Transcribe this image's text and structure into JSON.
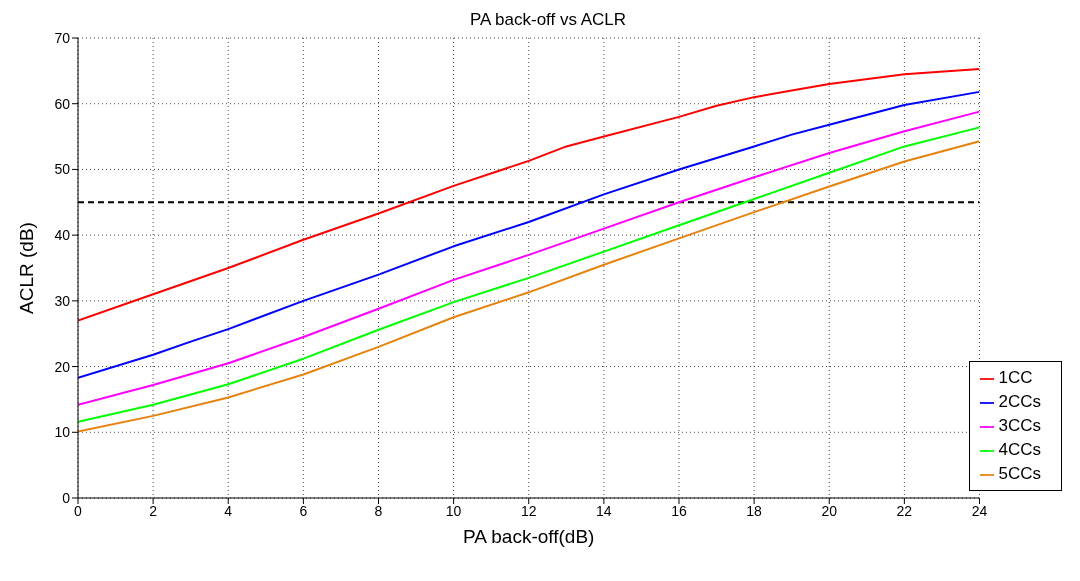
{
  "chart_data": {
    "type": "line",
    "title": "PA back-off vs ACLR",
    "xlabel": "PA back-off(dB)",
    "ylabel": "ACLR (dB)",
    "xlim": [
      0,
      24
    ],
    "xticks": [
      0,
      2,
      4,
      6,
      8,
      10,
      12,
      14,
      16,
      18,
      20,
      22,
      24
    ],
    "ylim": [
      0,
      70
    ],
    "yticks": [
      0,
      10,
      20,
      30,
      40,
      50,
      60,
      70
    ],
    "grid": true,
    "legend": "bottom right",
    "marker": "none",
    "line_style": "solid",
    "ref_lines": [
      {
        "axis": "y",
        "value": 45,
        "color": "#000000",
        "line_style": "dashed"
      }
    ],
    "series": [
      {
        "name": "1CC",
        "color": "#ff0000",
        "x": [
          0,
          2,
          4,
          6,
          8,
          10,
          12,
          13,
          14,
          16,
          17,
          18,
          19,
          20,
          22,
          24
        ],
        "values": [
          27,
          31,
          35,
          39.3,
          43.3,
          47.5,
          51.3,
          53.5,
          55,
          58,
          59.7,
          61,
          62,
          63,
          64.5,
          65.3
        ]
      },
      {
        "name": "2CCs",
        "color": "#0000ff",
        "x": [
          0,
          2,
          3,
          4,
          6,
          8,
          10,
          12,
          14,
          16,
          18,
          19,
          20,
          22,
          24
        ],
        "values": [
          18.3,
          21.8,
          23.8,
          25.7,
          30,
          34,
          38.3,
          42,
          46.2,
          50,
          53.5,
          55.3,
          56.8,
          59.8,
          61.8
        ]
      },
      {
        "name": "3CCs",
        "color": "#ff00ff",
        "x": [
          0,
          2,
          4,
          6,
          8,
          10,
          12,
          14,
          16,
          18,
          20,
          22,
          24
        ],
        "values": [
          14.2,
          17.2,
          20.5,
          24.5,
          28.8,
          33.2,
          37,
          41,
          45,
          48.8,
          52.5,
          55.8,
          58.8
        ]
      },
      {
        "name": "4CCs",
        "color": "#00ff00",
        "x": [
          0,
          2,
          4,
          6,
          8,
          10,
          12,
          14,
          16,
          18,
          20,
          22,
          24
        ],
        "values": [
          11.6,
          14.2,
          17.3,
          21.2,
          25.6,
          29.8,
          33.5,
          37.5,
          41.5,
          45.5,
          49.5,
          53.5,
          56.4
        ]
      },
      {
        "name": "5CCs",
        "color": "#e6820e",
        "x": [
          0,
          2,
          4,
          6,
          8,
          10,
          12,
          14,
          16,
          18,
          20,
          22,
          24
        ],
        "values": [
          10.1,
          12.5,
          15.3,
          18.8,
          23,
          27.5,
          31.3,
          35.5,
          39.5,
          43.5,
          47.4,
          51.2,
          54.3
        ]
      }
    ]
  }
}
